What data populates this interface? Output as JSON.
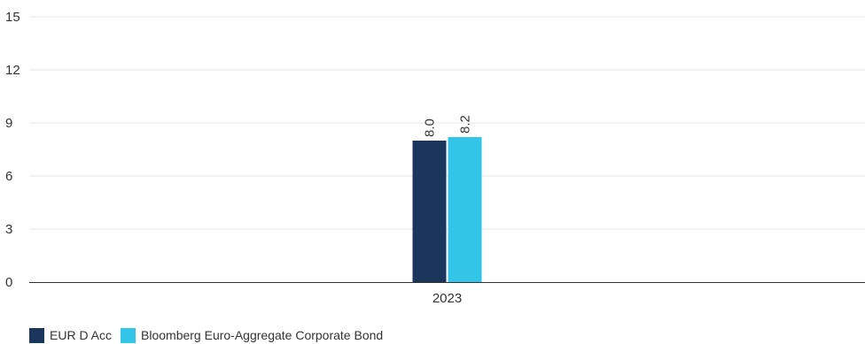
{
  "chart_data": {
    "type": "bar",
    "categories": [
      "2023"
    ],
    "series": [
      {
        "name": "EUR D Acc",
        "values": [
          8.0
        ],
        "color": "#1b365d"
      },
      {
        "name": "Bloomberg Euro-Aggregate Corporate Bond",
        "values": [
          8.2
        ],
        "color": "#33c5e8"
      }
    ],
    "data_labels": [
      [
        "8.0"
      ],
      [
        "8.2"
      ]
    ],
    "title": "",
    "xlabel": "",
    "ylabel": "",
    "ylim": [
      0,
      15
    ],
    "yticks": [
      0,
      3,
      6,
      9,
      12,
      15
    ],
    "grid": true,
    "legend_position": "bottom-left"
  }
}
